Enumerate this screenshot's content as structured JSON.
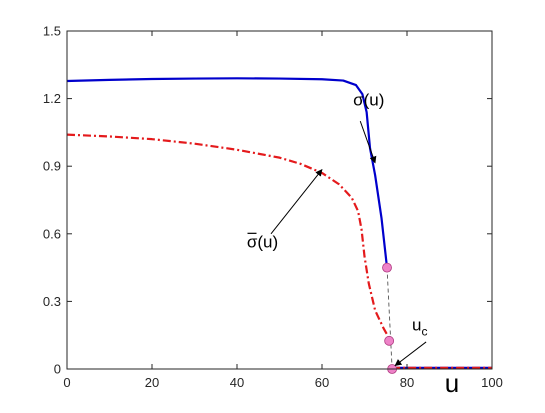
{
  "chart_data": {
    "type": "line",
    "title": "",
    "xlabel": "u",
    "ylabel": "",
    "xlim": [
      0,
      100
    ],
    "ylim": [
      0,
      1.5
    ],
    "xticks": [
      "0",
      "20",
      "40",
      "60",
      "80",
      "100"
    ],
    "yticks": [
      "0",
      "0.3",
      "0.6",
      "0.9",
      "1.2",
      "1.5"
    ],
    "xtick_values": [
      0,
      20,
      40,
      60,
      80,
      100
    ],
    "ytick_values": [
      0,
      0.3,
      0.6,
      0.9,
      1.2,
      1.5
    ],
    "grid": false,
    "series": [
      {
        "key": "sigma",
        "color": "#0000cc",
        "style": "solid",
        "x": [
          0,
          10,
          20,
          30,
          40,
          50,
          60,
          65,
          68,
          69.5,
          70.5,
          71.3,
          72.5,
          74,
          75.3
        ],
        "y": [
          1.278,
          1.283,
          1.287,
          1.289,
          1.29,
          1.289,
          1.286,
          1.28,
          1.26,
          1.22,
          1.14,
          0.98,
          0.86,
          0.67,
          0.45
        ]
      },
      {
        "key": "sigma_bar",
        "color": "#e41a1c",
        "style": "dashdot",
        "x": [
          0,
          10,
          20,
          30,
          40,
          50,
          55,
          60,
          64,
          67,
          68.5,
          69.3,
          70,
          71,
          72.5,
          74.5,
          76.3
        ],
        "y": [
          1.04,
          1.032,
          1.02,
          1.0,
          0.973,
          0.938,
          0.91,
          0.87,
          0.82,
          0.76,
          0.7,
          0.62,
          0.5,
          0.38,
          0.26,
          0.18,
          0.12
        ]
      },
      {
        "key": "zero_branch",
        "color": "#0000cc",
        "style": "solid",
        "x": [
          76.5,
          100
        ],
        "y": [
          0.005,
          0.005
        ]
      },
      {
        "key": "zero_branch_overlay",
        "color": "#e41a1c",
        "style": "dashdot",
        "x": [
          76.5,
          100
        ],
        "y": [
          0.005,
          0.005
        ]
      },
      {
        "key": "connector",
        "color": "#555555",
        "style": "dashed",
        "x": [
          75.3,
          76.5
        ],
        "y": [
          0.45,
          0.0
        ]
      }
    ],
    "markers": [
      {
        "x": 75.3,
        "y": 0.45,
        "color": "#ee82c8"
      },
      {
        "x": 75.8,
        "y": 0.125,
        "color": "#ee82c8"
      },
      {
        "x": 76.5,
        "y": 0.0,
        "color": "#ee82c8"
      }
    ],
    "annotations": [
      {
        "key": "sigma-label",
        "text": "σ(u)",
        "text_x": 71,
        "text_y": 1.17,
        "arrow_from": [
          69,
          1.1
        ],
        "arrow_to": [
          72.5,
          0.915
        ]
      },
      {
        "key": "sigma-bar-label",
        "text": "σ(u)",
        "overbar": true,
        "text_x": 46,
        "text_y": 0.54,
        "arrow_from": [
          48,
          0.6
        ],
        "arrow_to": [
          60,
          0.885
        ]
      },
      {
        "key": "uc-label",
        "text": "u",
        "sub": "c",
        "text_x": 83,
        "text_y": 0.17,
        "arrow_from": [
          84.5,
          0.12
        ],
        "arrow_to": [
          77.2,
          0.015
        ]
      }
    ]
  }
}
